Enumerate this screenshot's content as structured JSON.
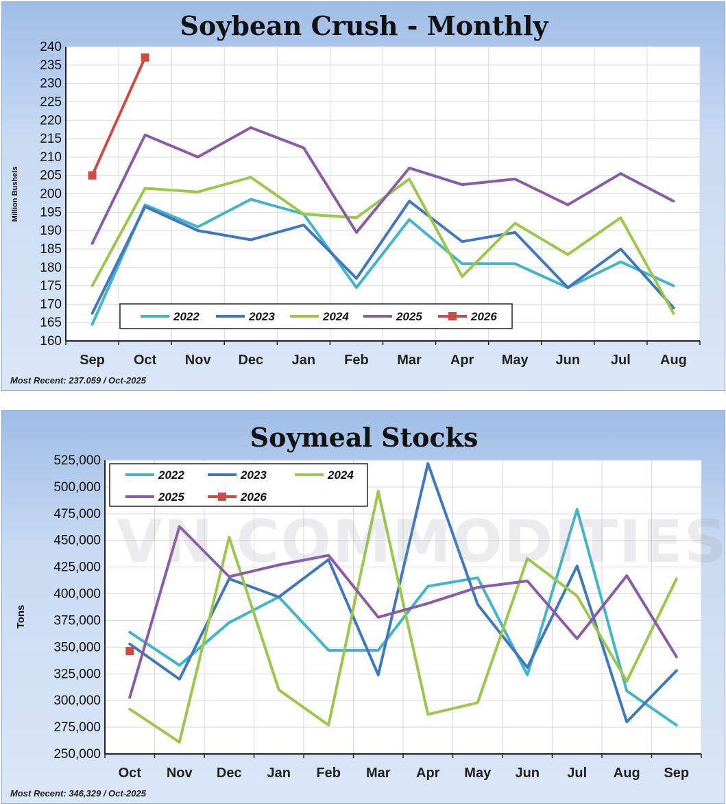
{
  "colors": {
    "2022": "#41b5c9",
    "2023": "#3f78bf",
    "2024": "#9bc84a",
    "2025": "#8b5ba8",
    "2026": "#d04a45"
  },
  "watermark": "VN COMMODITIES",
  "chart_data": [
    {
      "type": "line",
      "title": "Soybean Crush - Monthly",
      "xlabel": "",
      "ylabel": "Million Bushels",
      "ylim": [
        160,
        240
      ],
      "yticks": [
        "160",
        "165",
        "170",
        "175",
        "180",
        "185",
        "190",
        "195",
        "200",
        "205",
        "210",
        "215",
        "220",
        "225",
        "230",
        "235",
        "240"
      ],
      "categories": [
        "Sep",
        "Oct",
        "Nov",
        "Dec",
        "Jan",
        "Feb",
        "Mar",
        "Apr",
        "May",
        "Jun",
        "Jul",
        "Aug"
      ],
      "legend": [
        "2022",
        "2023",
        "2024",
        "2025",
        "2026"
      ],
      "note": "Most Recent: 237.059 / Oct-2025",
      "series": [
        {
          "name": "2022",
          "values": [
            164.5,
            197,
            191,
            198.5,
            194.5,
            174.5,
            193,
            181,
            181,
            174.5,
            181.5,
            175
          ]
        },
        {
          "name": "2023",
          "values": [
            167.5,
            196.5,
            190,
            187.5,
            191.5,
            177,
            198,
            187,
            189.5,
            174.5,
            185,
            169
          ]
        },
        {
          "name": "2024",
          "values": [
            175,
            201.5,
            200.5,
            204.5,
            194.5,
            193.5,
            204,
            177.5,
            192,
            183.5,
            193.5,
            167.5
          ]
        },
        {
          "name": "2025",
          "values": [
            186.5,
            216,
            210,
            218,
            212.5,
            189.5,
            207,
            202.5,
            204,
            197,
            205.5,
            198
          ]
        },
        {
          "name": "2026",
          "values": [
            205,
            237.059,
            null,
            null,
            null,
            null,
            null,
            null,
            null,
            null,
            null,
            null
          ]
        }
      ]
    },
    {
      "type": "line",
      "title": "Soymeal Stocks",
      "xlabel": "",
      "ylabel": "Tons",
      "ylim": [
        250000,
        525000
      ],
      "yticks": [
        "250,000",
        "275,000",
        "300,000",
        "325,000",
        "350,000",
        "375,000",
        "400,000",
        "425,000",
        "450,000",
        "475,000",
        "500,000",
        "525,000"
      ],
      "categories": [
        "Oct",
        "Nov",
        "Dec",
        "Jan",
        "Feb",
        "Mar",
        "Apr",
        "May",
        "Jun",
        "Jul",
        "Aug",
        "Sep"
      ],
      "legend": [
        "2022",
        "2023",
        "2024",
        "2025",
        "2026"
      ],
      "note": "Most Recent: 346,329 / Oct-2025",
      "series": [
        {
          "name": "2022",
          "values": [
            364000,
            333000,
            373000,
            397000,
            347000,
            347000,
            407000,
            415000,
            324000,
            479000,
            309000,
            277000
          ]
        },
        {
          "name": "2023",
          "values": [
            353000,
            320000,
            414000,
            397000,
            432000,
            324000,
            522000,
            390000,
            331000,
            426000,
            280000,
            328000
          ]
        },
        {
          "name": "2024",
          "values": [
            292000,
            261000,
            453000,
            310000,
            277000,
            496000,
            287000,
            298000,
            433000,
            398000,
            318000,
            414000
          ]
        },
        {
          "name": "2025",
          "values": [
            303000,
            463000,
            416000,
            427000,
            436000,
            378000,
            391000,
            406000,
            412000,
            358000,
            417000,
            341000
          ]
        },
        {
          "name": "2026",
          "values": [
            346329,
            null,
            null,
            null,
            null,
            null,
            null,
            null,
            null,
            null,
            null,
            null
          ]
        }
      ]
    }
  ]
}
